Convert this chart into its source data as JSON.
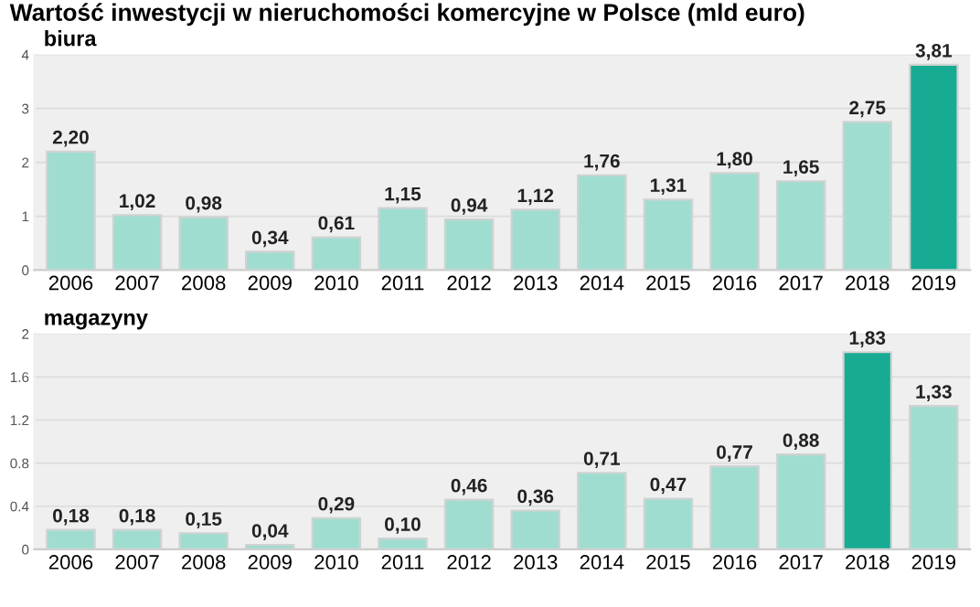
{
  "chart_data": [
    {
      "type": "bar",
      "title": "Wartość inwestycji w nieruchomości komercyjne w Polsce (mld euro)",
      "subtitle": "biura",
      "categories": [
        "2006",
        "2007",
        "2008",
        "2009",
        "2010",
        "2011",
        "2012",
        "2013",
        "2014",
        "2015",
        "2016",
        "2017",
        "2018",
        "2019"
      ],
      "values": [
        2.2,
        1.02,
        0.98,
        0.34,
        0.61,
        1.15,
        0.94,
        1.12,
        1.76,
        1.31,
        1.8,
        1.65,
        2.75,
        3.81
      ],
      "value_labels": [
        "2,20",
        "1,02",
        "0,98",
        "0,34",
        "0,61",
        "1,15",
        "0,94",
        "1,12",
        "1,76",
        "1,31",
        "1,80",
        "1,65",
        "2,75",
        "3,81"
      ],
      "colors": [
        "#a0ddd1",
        "#a0ddd1",
        "#a0ddd1",
        "#a0ddd1",
        "#a0ddd1",
        "#a0ddd1",
        "#a0ddd1",
        "#a0ddd1",
        "#a0ddd1",
        "#a0ddd1",
        "#a0ddd1",
        "#a0ddd1",
        "#a0ddd1",
        "#17ab94"
      ],
      "ylim": [
        0,
        4
      ],
      "yticks": [
        0,
        1,
        2,
        3,
        4
      ],
      "grid": "y"
    },
    {
      "type": "bar",
      "subtitle": "magazyny",
      "categories": [
        "2006",
        "2007",
        "2008",
        "2009",
        "2010",
        "2011",
        "2012",
        "2013",
        "2014",
        "2015",
        "2016",
        "2017",
        "2018",
        "2019"
      ],
      "values": [
        0.18,
        0.18,
        0.15,
        0.04,
        0.29,
        0.1,
        0.46,
        0.36,
        0.71,
        0.47,
        0.77,
        0.88,
        1.83,
        1.33
      ],
      "value_labels": [
        "0,18",
        "0,18",
        "0,15",
        "0,04",
        "0,29",
        "0,10",
        "0,46",
        "0,36",
        "0,71",
        "0,47",
        "0,77",
        "0,88",
        "1,83",
        "1,33"
      ],
      "colors": [
        "#a0ddd1",
        "#a0ddd1",
        "#a0ddd1",
        "#a0ddd1",
        "#a0ddd1",
        "#a0ddd1",
        "#a0ddd1",
        "#a0ddd1",
        "#a0ddd1",
        "#a0ddd1",
        "#a0ddd1",
        "#a0ddd1",
        "#17ab94",
        "#a0ddd1"
      ],
      "ylim": [
        0,
        2
      ],
      "yticks": [
        0,
        0.4,
        0.8,
        1.2,
        1.6,
        2
      ],
      "grid": "y"
    }
  ]
}
